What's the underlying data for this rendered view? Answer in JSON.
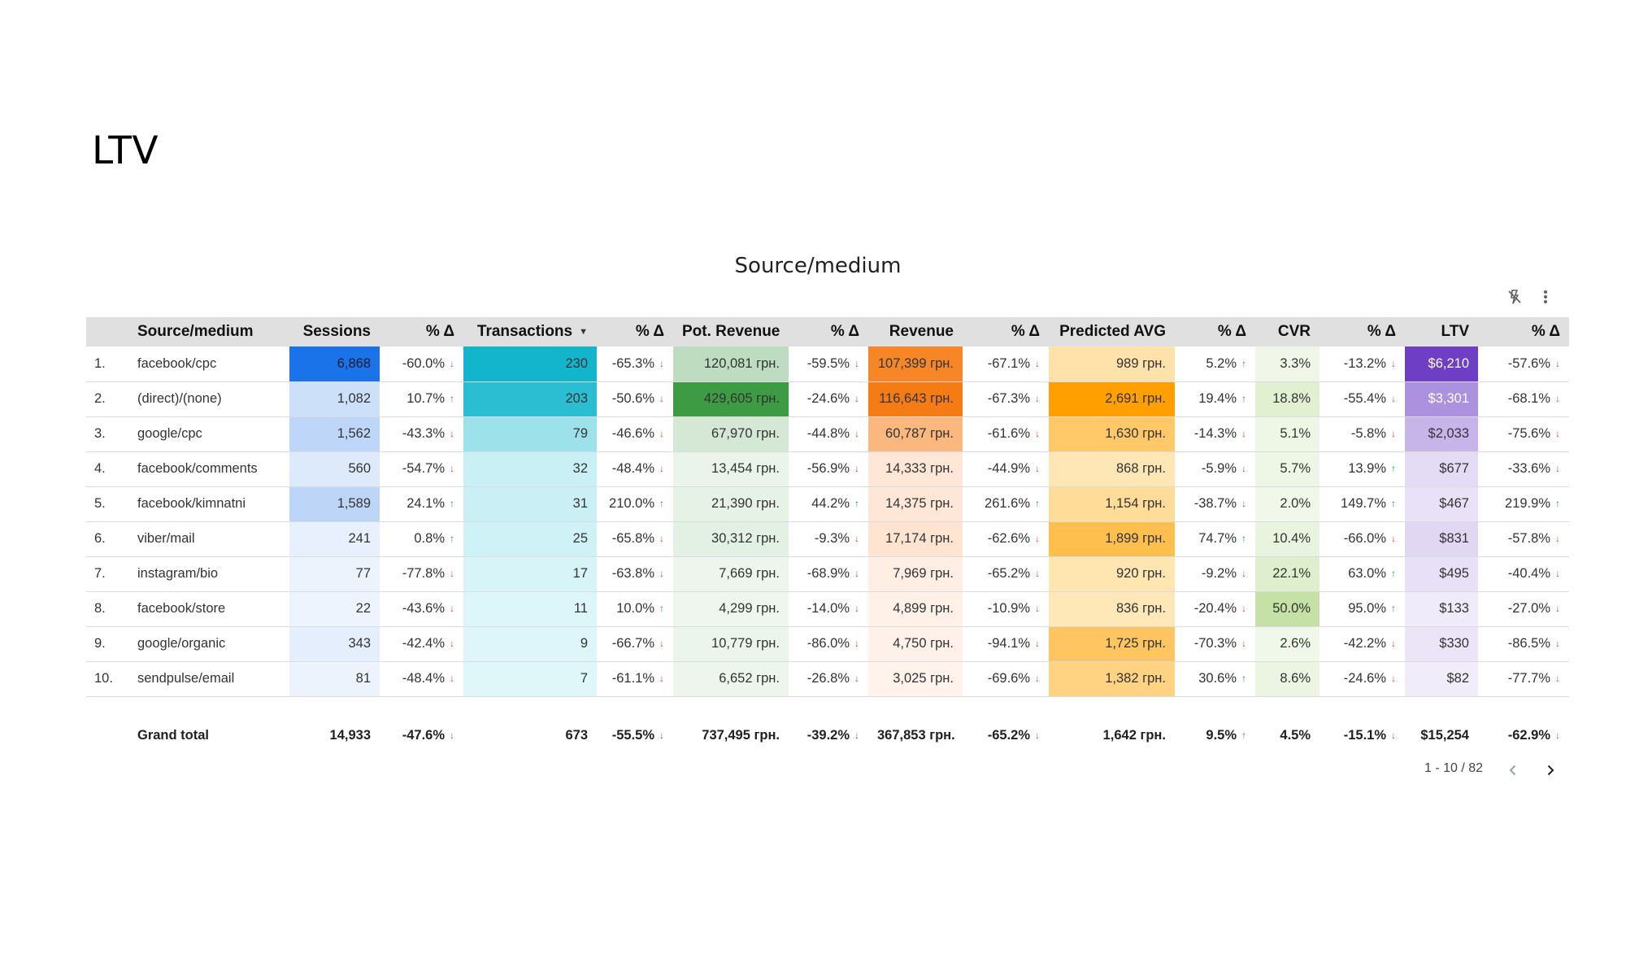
{
  "page": {
    "title": "LTV"
  },
  "table": {
    "title": "Source/medium",
    "headers": [
      "Source/medium",
      "Sessions",
      "% Δ",
      "Transactions",
      "% Δ",
      "Pot. Revenue",
      "% Δ",
      "Revenue",
      "% Δ",
      "Predicted AVG",
      "% Δ",
      "CVR",
      "% Δ",
      "LTV",
      "% Δ"
    ],
    "sort_column": "Transactions",
    "sort_direction": "descending",
    "rows": [
      {
        "index": "1.",
        "source": "facebook/cpc",
        "sessions": "6,868",
        "sessions_d": "-60.0%",
        "sessions_dir": "down",
        "transactions": "230",
        "transactions_d": "-65.3%",
        "transactions_dir": "down",
        "pot_revenue": "120,081 грн.",
        "pot_revenue_d": "-59.5%",
        "pot_revenue_dir": "down",
        "revenue": "107,399 грн.",
        "revenue_d": "-67.1%",
        "revenue_dir": "down",
        "predicted_avg": "989 грн.",
        "predicted_avg_d": "5.2%",
        "predicted_avg_dir": "up",
        "cvr": "3.3%",
        "cvr_d": "-13.2%",
        "cvr_dir": "down",
        "ltv": "$6,210",
        "ltv_d": "-57.6%",
        "ltv_dir": "down"
      },
      {
        "index": "2.",
        "source": "(direct)/(none)",
        "sessions": "1,082",
        "sessions_d": "10.7%",
        "sessions_dir": "up",
        "transactions": "203",
        "transactions_d": "-50.6%",
        "transactions_dir": "down",
        "pot_revenue": "429,605 грн.",
        "pot_revenue_d": "-24.6%",
        "pot_revenue_dir": "down",
        "revenue": "116,643 грн.",
        "revenue_d": "-67.3%",
        "revenue_dir": "down",
        "predicted_avg": "2,691 грн.",
        "predicted_avg_d": "19.4%",
        "predicted_avg_dir": "up",
        "cvr": "18.8%",
        "cvr_d": "-55.4%",
        "cvr_dir": "down",
        "ltv": "$3,301",
        "ltv_d": "-68.1%",
        "ltv_dir": "down"
      },
      {
        "index": "3.",
        "source": "google/cpc",
        "sessions": "1,562",
        "sessions_d": "-43.3%",
        "sessions_dir": "down",
        "transactions": "79",
        "transactions_d": "-46.6%",
        "transactions_dir": "down",
        "pot_revenue": "67,970 грн.",
        "pot_revenue_d": "-44.8%",
        "pot_revenue_dir": "down",
        "revenue": "60,787 грн.",
        "revenue_d": "-61.6%",
        "revenue_dir": "down",
        "predicted_avg": "1,630 грн.",
        "predicted_avg_d": "-14.3%",
        "predicted_avg_dir": "down",
        "cvr": "5.1%",
        "cvr_d": "-5.8%",
        "cvr_dir": "down",
        "ltv": "$2,033",
        "ltv_d": "-75.6%",
        "ltv_dir": "down"
      },
      {
        "index": "4.",
        "source": "facebook/comments",
        "sessions": "560",
        "sessions_d": "-54.7%",
        "sessions_dir": "down",
        "transactions": "32",
        "transactions_d": "-48.4%",
        "transactions_dir": "down",
        "pot_revenue": "13,454 грн.",
        "pot_revenue_d": "-56.9%",
        "pot_revenue_dir": "down",
        "revenue": "14,333 грн.",
        "revenue_d": "-44.9%",
        "revenue_dir": "down",
        "predicted_avg": "868 грн.",
        "predicted_avg_d": "-5.9%",
        "predicted_avg_dir": "down",
        "cvr": "5.7%",
        "cvr_d": "13.9%",
        "cvr_dir": "up",
        "ltv": "$677",
        "ltv_d": "-33.6%",
        "ltv_dir": "down"
      },
      {
        "index": "5.",
        "source": "facebook/kimnatni",
        "sessions": "1,589",
        "sessions_d": "24.1%",
        "sessions_dir": "up",
        "transactions": "31",
        "transactions_d": "210.0%",
        "transactions_dir": "up",
        "pot_revenue": "21,390 грн.",
        "pot_revenue_d": "44.2%",
        "pot_revenue_dir": "up",
        "revenue": "14,375 грн.",
        "revenue_d": "261.6%",
        "revenue_dir": "up",
        "predicted_avg": "1,154 грн.",
        "predicted_avg_d": "-38.7%",
        "predicted_avg_dir": "down",
        "cvr": "2.0%",
        "cvr_d": "149.7%",
        "cvr_dir": "up",
        "ltv": "$467",
        "ltv_d": "219.9%",
        "ltv_dir": "up"
      },
      {
        "index": "6.",
        "source": "viber/mail",
        "sessions": "241",
        "sessions_d": "0.8%",
        "sessions_dir": "up",
        "transactions": "25",
        "transactions_d": "-65.8%",
        "transactions_dir": "down",
        "pot_revenue": "30,312 грн.",
        "pot_revenue_d": "-9.3%",
        "pot_revenue_dir": "down",
        "revenue": "17,174 грн.",
        "revenue_d": "-62.6%",
        "revenue_dir": "down",
        "predicted_avg": "1,899 грн.",
        "predicted_avg_d": "74.7%",
        "predicted_avg_dir": "up",
        "cvr": "10.4%",
        "cvr_d": "-66.0%",
        "cvr_dir": "down",
        "ltv": "$831",
        "ltv_d": "-57.8%",
        "ltv_dir": "down"
      },
      {
        "index": "7.",
        "source": "instagram/bio",
        "sessions": "77",
        "sessions_d": "-77.8%",
        "sessions_dir": "down",
        "transactions": "17",
        "transactions_d": "-63.8%",
        "transactions_dir": "down",
        "pot_revenue": "7,669 грн.",
        "pot_revenue_d": "-68.9%",
        "pot_revenue_dir": "down",
        "revenue": "7,969 грн.",
        "revenue_d": "-65.2%",
        "revenue_dir": "down",
        "predicted_avg": "920 грн.",
        "predicted_avg_d": "-9.2%",
        "predicted_avg_dir": "down",
        "cvr": "22.1%",
        "cvr_d": "63.0%",
        "cvr_dir": "up",
        "ltv": "$495",
        "ltv_d": "-40.4%",
        "ltv_dir": "down"
      },
      {
        "index": "8.",
        "source": "facebook/store",
        "sessions": "22",
        "sessions_d": "-43.6%",
        "sessions_dir": "down",
        "transactions": "11",
        "transactions_d": "10.0%",
        "transactions_dir": "up",
        "pot_revenue": "4,299 грн.",
        "pot_revenue_d": "-14.0%",
        "pot_revenue_dir": "down",
        "revenue": "4,899 грн.",
        "revenue_d": "-10.9%",
        "revenue_dir": "down",
        "predicted_avg": "836 грн.",
        "predicted_avg_d": "-20.4%",
        "predicted_avg_dir": "down",
        "cvr": "50.0%",
        "cvr_d": "95.0%",
        "cvr_dir": "up",
        "ltv": "$133",
        "ltv_d": "-27.0%",
        "ltv_dir": "down"
      },
      {
        "index": "9.",
        "source": "google/organic",
        "sessions": "343",
        "sessions_d": "-42.4%",
        "sessions_dir": "down",
        "transactions": "9",
        "transactions_d": "-66.7%",
        "transactions_dir": "down",
        "pot_revenue": "10,779 грн.",
        "pot_revenue_d": "-86.0%",
        "pot_revenue_dir": "down",
        "revenue": "4,750 грн.",
        "revenue_d": "-94.1%",
        "revenue_dir": "down",
        "predicted_avg": "1,725 грн.",
        "predicted_avg_d": "-70.3%",
        "predicted_avg_dir": "down",
        "cvr": "2.6%",
        "cvr_d": "-42.2%",
        "cvr_dir": "down",
        "ltv": "$330",
        "ltv_d": "-86.5%",
        "ltv_dir": "down"
      },
      {
        "index": "10.",
        "source": "sendpulse/email",
        "sessions": "81",
        "sessions_d": "-48.4%",
        "sessions_dir": "down",
        "transactions": "7",
        "transactions_d": "-61.1%",
        "transactions_dir": "down",
        "pot_revenue": "6,652 грн.",
        "pot_revenue_d": "-26.8%",
        "pot_revenue_dir": "down",
        "revenue": "3,025 грн.",
        "revenue_d": "-69.6%",
        "revenue_dir": "down",
        "predicted_avg": "1,382 грн.",
        "predicted_avg_d": "30.6%",
        "predicted_avg_dir": "up",
        "cvr": "8.6%",
        "cvr_d": "-24.6%",
        "cvr_dir": "down",
        "ltv": "$82",
        "ltv_d": "-77.7%",
        "ltv_dir": "down"
      }
    ],
    "grand_total": {
      "label": "Grand total",
      "sessions": "14,933",
      "sessions_d": "-47.6%",
      "sessions_dir": "down",
      "transactions": "673",
      "transactions_d": "-55.5%",
      "transactions_dir": "down",
      "pot_revenue": "737,495 грн.",
      "pot_revenue_d": "-39.2%",
      "pot_revenue_dir": "down",
      "revenue": "367,853 грн.",
      "revenue_d": "-65.2%",
      "revenue_dir": "down",
      "predicted_avg": "1,642 грн.",
      "predicted_avg_d": "9.5%",
      "predicted_avg_dir": "up",
      "cvr": "4.5%",
      "cvr_d": "-15.1%",
      "cvr_dir": "down",
      "ltv": "$15,254",
      "ltv_d": "-62.9%",
      "ltv_dir": "down"
    },
    "pagination": {
      "label": "1 - 10 / 82"
    }
  },
  "heatmap_colors": {
    "sessions": {
      "low": "#eef4fd",
      "high": "#1a73e8"
    },
    "transactions": {
      "low": "#e0f7fa",
      "high": "#12b5cb"
    },
    "pot_revenue": {
      "low": "#eef6ee",
      "high": "#3d9b44"
    },
    "revenue": {
      "low": "#fff3ec",
      "high": "#f57c14"
    },
    "predicted_avg": {
      "low": "#ffe8b8",
      "high": "#ffa000"
    },
    "cvr": {
      "low": "#f1f8ea",
      "high": "#c5e1a5"
    },
    "ltv": {
      "low": "#f1ecfa",
      "high": "#6e3fc4"
    }
  },
  "status_colors": {
    "up": "#0f9d58",
    "down": "#db4437"
  },
  "icons": {
    "toolbar": [
      "flash-off-icon",
      "more-vert-icon"
    ],
    "pager": [
      "chevron-left-icon",
      "chevron-right-icon"
    ],
    "arrows": {
      "up": "arrow-up-icon",
      "down": "arrow-down-icon"
    }
  }
}
